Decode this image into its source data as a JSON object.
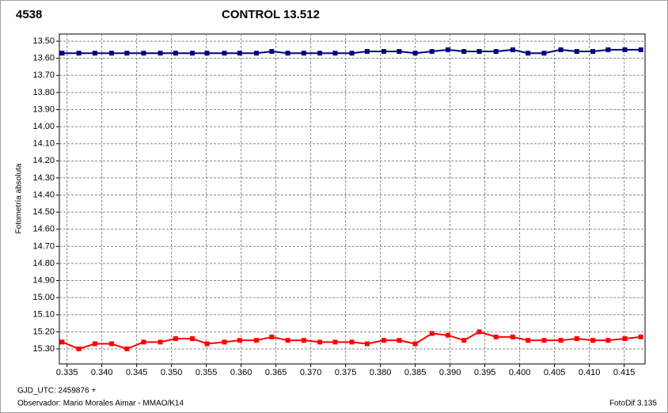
{
  "chart_data": {
    "type": "line",
    "title": "CONTROL 13.512",
    "ylabel": "Fotometría absoluta",
    "xlabel": "GJD_UTC: 2459876 +",
    "observer": "Observador: Mario Morales Aimar - MMAO/K14",
    "software": "FotoDif 3.135",
    "y_inverted": true,
    "grid": true,
    "xlim": [
      0.3339,
      0.418
    ],
    "ylim": [
      13.458,
      15.388
    ],
    "xticks": [
      0.335,
      {
        "value": 0.34,
        "label": "0.340"
      },
      0.345,
      {
        "value": 0.35,
        "label": "0.350"
      },
      0.355,
      {
        "value": 0.36,
        "label": "0.360"
      },
      0.365,
      {
        "value": 0.37,
        "label": "0.370"
      },
      0.375,
      {
        "value": 0.38,
        "label": "0.380"
      },
      0.385,
      {
        "value": 0.39,
        "label": "0.390"
      },
      0.395,
      {
        "value": 0.4,
        "label": "0.400"
      },
      0.405,
      {
        "value": 0.41,
        "label": "0.410"
      },
      0.415
    ],
    "yticks": [
      {
        "value": 13.5,
        "label": "13.50"
      },
      {
        "value": 13.6,
        "label": "13.60"
      },
      {
        "value": 13.7,
        "label": "13.70"
      },
      {
        "value": 13.8,
        "label": "13.80"
      },
      {
        "value": 13.9,
        "label": "13.90"
      },
      {
        "value": 14.0,
        "label": "14.00"
      },
      {
        "value": 14.1,
        "label": "14.10"
      },
      {
        "value": 14.2,
        "label": "14.20"
      },
      {
        "value": 14.3,
        "label": "14.30"
      },
      {
        "value": 14.4,
        "label": "14.40"
      },
      {
        "value": 14.5,
        "label": "14.50"
      },
      {
        "value": 14.6,
        "label": "14.60"
      },
      {
        "value": 14.7,
        "label": "14.70"
      },
      {
        "value": 14.8,
        "label": "14.80"
      },
      {
        "value": 14.9,
        "label": "14.90"
      },
      {
        "value": 15.0,
        "label": "15.00"
      },
      {
        "value": 15.1,
        "label": "15.10"
      },
      {
        "value": 15.2,
        "label": "15.20"
      },
      {
        "value": 15.3,
        "label": "15.30"
      }
    ],
    "x": [
      0.3343,
      0.3367,
      0.339,
      0.3414,
      0.3436,
      0.346,
      0.3484,
      0.3506,
      0.353,
      0.3551,
      0.3576,
      0.3598,
      0.3622,
      0.3644,
      0.3667,
      0.369,
      0.3713,
      0.3735,
      0.3759,
      0.3781,
      0.3805,
      0.3827,
      0.385,
      0.3874,
      0.3897,
      0.392,
      0.3942,
      0.3966,
      0.399,
      0.4012,
      0.4035,
      0.4059,
      0.4082,
      0.4105,
      0.4127,
      0.4151,
      0.4174
    ],
    "series": [
      {
        "name": "4538",
        "color": "#ff0000",
        "values": [
          15.26,
          15.3,
          15.27,
          15.27,
          15.3,
          15.26,
          15.26,
          15.24,
          15.24,
          15.27,
          15.26,
          15.25,
          15.25,
          15.23,
          15.25,
          15.25,
          15.26,
          15.26,
          15.26,
          15.27,
          15.25,
          15.25,
          15.27,
          15.21,
          15.22,
          15.25,
          15.2,
          15.23,
          15.23,
          15.25,
          15.25,
          15.25,
          15.24,
          15.25,
          15.25,
          15.24,
          15.23
        ]
      },
      {
        "name": "CONTROL 13.512",
        "color": "#000080",
        "values": [
          13.57,
          13.57,
          13.57,
          13.57,
          13.57,
          13.57,
          13.57,
          13.57,
          13.57,
          13.57,
          13.57,
          13.57,
          13.57,
          13.56,
          13.57,
          13.57,
          13.57,
          13.57,
          13.57,
          13.56,
          13.56,
          13.56,
          13.57,
          13.56,
          13.55,
          13.56,
          13.56,
          13.56,
          13.55,
          13.57,
          13.57,
          13.55,
          13.56,
          13.56,
          13.55,
          13.55,
          13.55
        ]
      }
    ]
  }
}
